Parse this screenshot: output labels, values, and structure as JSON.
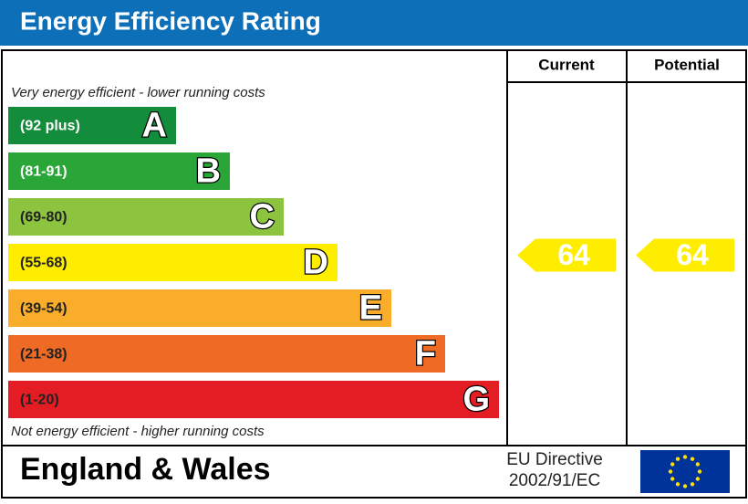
{
  "title": "Energy Efficiency Rating",
  "columns": [
    "Current",
    "Potential"
  ],
  "top_note": "Very energy efficient - lower running costs",
  "bottom_note": "Not energy efficient - higher running costs",
  "bands": [
    {
      "range": "(92 plus)",
      "letter": "A",
      "color": "#138d3c"
    },
    {
      "range": "(81-91)",
      "letter": "B",
      "color": "#2aa639"
    },
    {
      "range": "(69-80)",
      "letter": "C",
      "color": "#8cc43f"
    },
    {
      "range": "(55-68)",
      "letter": "D",
      "color": "#ffed00"
    },
    {
      "range": "(39-54)",
      "letter": "E",
      "color": "#f9ad2a"
    },
    {
      "range": "(21-38)",
      "letter": "F",
      "color": "#ee6a25"
    },
    {
      "range": "(1-20)",
      "letter": "G",
      "color": "#e31d23"
    }
  ],
  "ratings": [
    64,
    64
  ],
  "region": "England & Wales",
  "directive": [
    "EU Directive",
    "2002/91/EC"
  ]
}
